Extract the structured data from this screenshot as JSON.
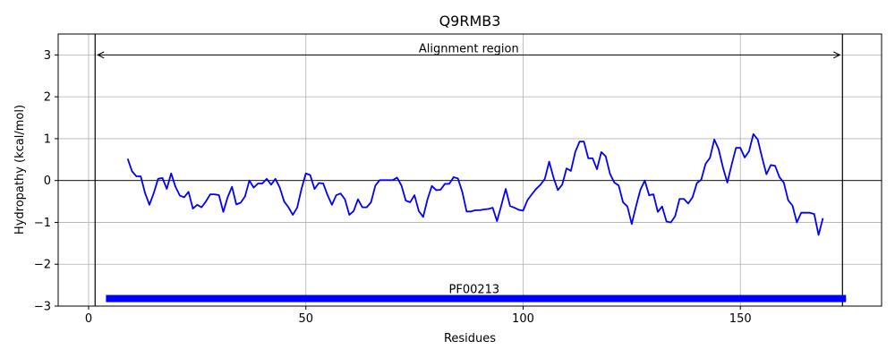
{
  "chart_data": {
    "type": "line",
    "title": "Q9RMB3",
    "xlabel": "Residues",
    "ylabel": "Hydropathy (kcal/mol)",
    "xlim": [
      -7,
      182.5
    ],
    "ylim": [
      -3,
      3.5
    ],
    "xticks": [
      0,
      50,
      100,
      150
    ],
    "yticks": [
      -3,
      -2,
      -1,
      0,
      1,
      2,
      3
    ],
    "grid": true,
    "line_color": "#0000ff",
    "x": [
      9,
      10,
      11,
      12,
      13,
      14,
      15,
      16,
      17,
      18,
      19,
      20,
      21,
      22,
      23,
      24,
      25,
      26,
      27,
      28,
      29,
      30,
      31,
      32,
      33,
      34,
      35,
      36,
      37,
      38,
      39,
      40,
      41,
      42,
      43,
      44,
      45,
      46,
      47,
      48,
      49,
      50,
      51,
      52,
      53,
      54,
      55,
      56,
      57,
      58,
      59,
      60,
      61,
      62,
      63,
      64,
      65,
      66,
      67,
      68,
      69,
      70,
      71,
      72,
      73,
      74,
      75,
      76,
      77,
      78,
      79,
      80,
      81,
      82,
      83,
      84,
      85,
      86,
      87,
      88,
      89,
      90,
      91,
      92,
      93,
      94,
      95,
      96,
      97,
      98,
      99,
      100,
      101,
      102,
      103,
      104,
      105,
      106,
      107,
      108,
      109,
      110,
      111,
      112,
      113,
      114,
      115,
      116,
      117,
      118,
      119,
      120,
      121,
      122,
      123,
      124,
      125,
      126,
      127,
      128,
      129,
      130,
      131,
      132,
      133,
      134,
      135,
      136,
      137,
      138,
      139,
      140,
      141,
      142,
      143,
      144,
      145,
      146,
      147,
      148,
      149,
      150,
      151,
      152,
      153,
      154,
      155,
      156,
      157,
      158,
      159,
      160,
      161,
      162,
      163,
      164,
      165,
      166,
      167,
      168,
      169
    ],
    "series": [
      {
        "values": [
          0.52,
          0.22,
          0.1,
          0.1,
          -0.3,
          -0.58,
          -0.3,
          0.04,
          0.06,
          -0.2,
          0.17,
          -0.15,
          -0.36,
          -0.4,
          -0.27,
          -0.67,
          -0.58,
          -0.64,
          -0.5,
          -0.33,
          -0.33,
          -0.35,
          -0.75,
          -0.4,
          -0.15,
          -0.57,
          -0.53,
          -0.38,
          0.0,
          -0.17,
          -0.07,
          -0.07,
          0.04,
          -0.1,
          0.04,
          -0.17,
          -0.5,
          -0.64,
          -0.82,
          -0.65,
          -0.2,
          0.17,
          0.13,
          -0.2,
          -0.06,
          -0.07,
          -0.35,
          -0.58,
          -0.35,
          -0.31,
          -0.45,
          -0.82,
          -0.73,
          -0.45,
          -0.64,
          -0.64,
          -0.52,
          -0.12,
          0.01,
          0.01,
          0.01,
          0.01,
          0.07,
          -0.12,
          -0.48,
          -0.52,
          -0.35,
          -0.73,
          -0.87,
          -0.45,
          -0.13,
          -0.23,
          -0.22,
          -0.08,
          -0.08,
          0.08,
          0.05,
          -0.27,
          -0.74,
          -0.74,
          -0.71,
          -0.71,
          -0.69,
          -0.68,
          -0.65,
          -0.97,
          -0.59,
          -0.2,
          -0.61,
          -0.65,
          -0.7,
          -0.72,
          -0.47,
          -0.33,
          -0.2,
          -0.1,
          0.04,
          0.45,
          0.07,
          -0.23,
          -0.1,
          0.29,
          0.23,
          0.68,
          0.93,
          0.93,
          0.53,
          0.53,
          0.27,
          0.68,
          0.58,
          0.16,
          -0.05,
          -0.12,
          -0.52,
          -0.62,
          -1.04,
          -0.61,
          -0.22,
          0.0,
          -0.35,
          -0.33,
          -0.75,
          -0.62,
          -0.98,
          -1.0,
          -0.85,
          -0.44,
          -0.44,
          -0.55,
          -0.4,
          -0.06,
          0.02,
          0.4,
          0.54,
          0.98,
          0.75,
          0.31,
          -0.05,
          0.38,
          0.78,
          0.78,
          0.55,
          0.7,
          1.11,
          0.98,
          0.55,
          0.15,
          0.37,
          0.35,
          0.08,
          -0.05,
          -0.47,
          -0.6,
          -1.0,
          -0.77,
          -0.77,
          -0.77,
          -0.8,
          -1.3,
          -0.9
        ]
      }
    ],
    "annotations": [
      {
        "text": "Alignment region",
        "x_start": 1.5,
        "x_end": 173.5,
        "y": 3.0
      },
      {
        "text": "PF00213",
        "x_start": 4,
        "x_end": 173.5,
        "y": -2.82,
        "color": "#0000ff"
      }
    ]
  }
}
